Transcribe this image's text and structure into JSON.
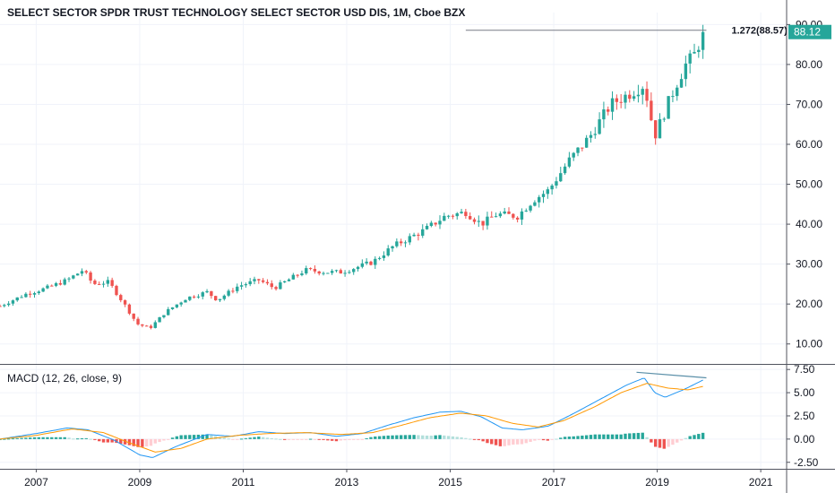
{
  "chart_data": {
    "type": "candlestick",
    "title": "SELECT SECTOR SPDR TRUST TECHNOLOGY SELECT SECTOR USD DIS, 1M, Cboe BZX",
    "price_axis": {
      "range": [
        5,
        93
      ],
      "ticks": [
        "10.00",
        "20.00",
        "30.00",
        "40.00",
        "50.00",
        "60.00",
        "70.00",
        "80.00",
        "90.00"
      ],
      "tick_values": [
        10,
        20,
        30,
        40,
        50,
        60,
        70,
        80,
        90
      ]
    },
    "time_axis": {
      "range": [
        2006.3,
        2021.5
      ],
      "ticks": [
        "2007",
        "2009",
        "2011",
        "2013",
        "2015",
        "2017",
        "2019",
        "2021"
      ],
      "tick_values": [
        2007,
        2009,
        2011,
        2013,
        2015,
        2017,
        2019,
        2021
      ]
    },
    "last_price": "88.12",
    "last_price_value": 88.12,
    "fib_label": "1.272(88.57)",
    "fib_value": 88.57,
    "fib_start_time": 2015.3,
    "anchors": [
      [
        2006.3,
        19.5
      ],
      [
        2006.8,
        22.5
      ],
      [
        2007.2,
        24
      ],
      [
        2007.6,
        26
      ],
      [
        2007.9,
        28.5
      ],
      [
        2008.1,
        25
      ],
      [
        2008.4,
        25.5
      ],
      [
        2008.7,
        20
      ],
      [
        2008.95,
        15
      ],
      [
        2009.2,
        14
      ],
      [
        2009.5,
        18
      ],
      [
        2009.9,
        21.5
      ],
      [
        2010.3,
        23
      ],
      [
        2010.5,
        21
      ],
      [
        2010.9,
        24.5
      ],
      [
        2011.3,
        26
      ],
      [
        2011.6,
        24
      ],
      [
        2012.2,
        28.5
      ],
      [
        2012.6,
        28
      ],
      [
        2012.9,
        28
      ],
      [
        2013.5,
        30.5
      ],
      [
        2013.9,
        34.5
      ],
      [
        2014.5,
        38.5
      ],
      [
        2014.9,
        42
      ],
      [
        2015.3,
        43
      ],
      [
        2015.6,
        40
      ],
      [
        2015.9,
        42.5
      ],
      [
        2016.3,
        42
      ],
      [
        2016.6,
        46
      ],
      [
        2016.9,
        48.5
      ],
      [
        2017.3,
        56
      ],
      [
        2017.7,
        62
      ],
      [
        2018.1,
        70
      ],
      [
        2018.5,
        73
      ],
      [
        2018.75,
        75
      ],
      [
        2018.95,
        62
      ],
      [
        2019.2,
        70
      ],
      [
        2019.4,
        76
      ],
      [
        2019.55,
        80
      ],
      [
        2019.7,
        82
      ],
      [
        2019.9,
        88.12
      ]
    ],
    "macd_panel": {
      "label": "MACD (12, 26, close, 9)",
      "range": [
        -3.2,
        8.0
      ],
      "ticks": [
        "7.50",
        "5.00",
        "2.50",
        "0.00",
        "-2.50"
      ],
      "tick_values": [
        7.5,
        5.0,
        2.5,
        0.0,
        -2.5
      ],
      "macd_anchors": [
        [
          2006.3,
          0
        ],
        [
          2007.0,
          0.6
        ],
        [
          2007.6,
          1.2
        ],
        [
          2008.0,
          1.0
        ],
        [
          2008.5,
          -0.1
        ],
        [
          2009.0,
          -1.7
        ],
        [
          2009.25,
          -2.0
        ],
        [
          2009.7,
          -0.8
        ],
        [
          2010.3,
          0.5
        ],
        [
          2010.8,
          0.3
        ],
        [
          2011.3,
          0.8
        ],
        [
          2011.8,
          0.6
        ],
        [
          2012.3,
          0.7
        ],
        [
          2012.8,
          0.3
        ],
        [
          2013.3,
          0.6
        ],
        [
          2013.8,
          1.5
        ],
        [
          2014.3,
          2.3
        ],
        [
          2014.8,
          2.9
        ],
        [
          2015.2,
          3.0
        ],
        [
          2015.6,
          2.4
        ],
        [
          2016.0,
          1.2
        ],
        [
          2016.4,
          1.0
        ],
        [
          2016.9,
          1.4
        ],
        [
          2017.4,
          2.8
        ],
        [
          2017.9,
          4.3
        ],
        [
          2018.4,
          5.8
        ],
        [
          2018.75,
          6.6
        ],
        [
          2018.95,
          5.0
        ],
        [
          2019.15,
          4.5
        ],
        [
          2019.5,
          5.3
        ],
        [
          2019.9,
          6.4
        ]
      ],
      "signal_anchors": [
        [
          2006.3,
          0
        ],
        [
          2007.0,
          0.4
        ],
        [
          2007.7,
          1.1
        ],
        [
          2008.3,
          0.7
        ],
        [
          2008.8,
          -0.4
        ],
        [
          2009.3,
          -1.4
        ],
        [
          2009.8,
          -1.0
        ],
        [
          2010.3,
          0.0
        ],
        [
          2010.9,
          0.4
        ],
        [
          2011.5,
          0.6
        ],
        [
          2012.2,
          0.7
        ],
        [
          2012.9,
          0.5
        ],
        [
          2013.5,
          0.7
        ],
        [
          2014.0,
          1.4
        ],
        [
          2014.6,
          2.3
        ],
        [
          2015.2,
          2.8
        ],
        [
          2015.7,
          2.5
        ],
        [
          2016.2,
          1.7
        ],
        [
          2016.7,
          1.3
        ],
        [
          2017.2,
          2.0
        ],
        [
          2017.8,
          3.5
        ],
        [
          2018.3,
          5.0
        ],
        [
          2018.8,
          6.0
        ],
        [
          2019.2,
          5.5
        ],
        [
          2019.6,
          5.3
        ],
        [
          2019.9,
          5.7
        ]
      ],
      "divergence_line": [
        [
          2018.6,
          7.2
        ],
        [
          2019.95,
          6.6
        ]
      ]
    },
    "colors": {
      "up": "#26a69a",
      "down": "#ef5350",
      "hist_up_strong": "#26a69a",
      "hist_up_weak": "#b2dfdb",
      "hist_down_strong": "#ef5350",
      "hist_down_weak": "#ffcdd2",
      "macd_line": "#2196f3",
      "signal_line": "#ff9800",
      "grid": "#f0f3fa",
      "axis_line": "#50535e",
      "fib_line": "#787b86",
      "divergence": "#5a8fa8"
    }
  }
}
